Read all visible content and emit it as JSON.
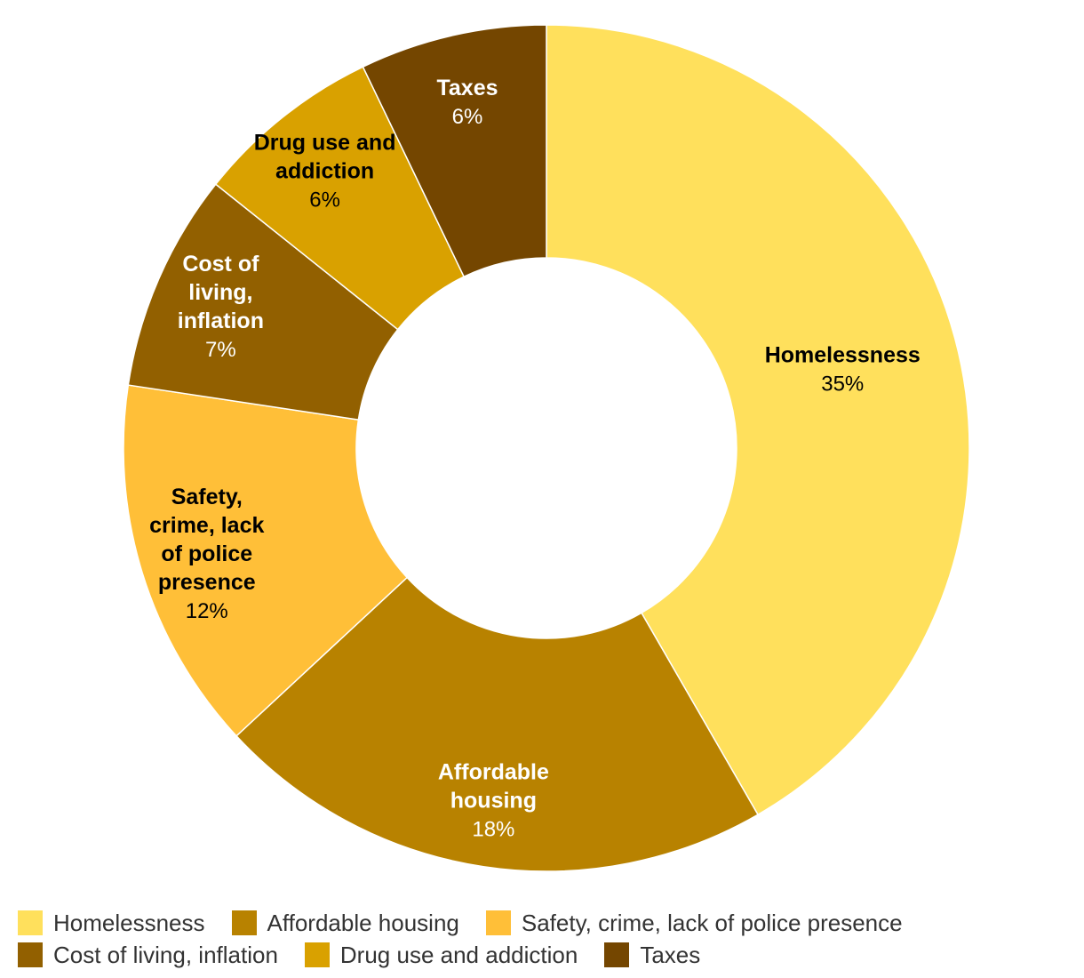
{
  "chart_data": {
    "type": "pie",
    "donut": true,
    "title": "",
    "legend_position": "bottom",
    "slices": [
      {
        "name": "Homelessness",
        "value": 35,
        "value_label": "35%",
        "label_lines": [
          "Homelessness"
        ],
        "color": "#FFE05C",
        "label_color": "#000000"
      },
      {
        "name": "Affordable housing",
        "value": 18,
        "value_label": "18%",
        "label_lines": [
          "Affordable",
          "housing"
        ],
        "color": "#B88200",
        "label_color": "#FFFFFF"
      },
      {
        "name": "Safety, crime, lack of police presence",
        "value": 12,
        "value_label": "12%",
        "label_lines": [
          "Safety,",
          "crime, lack",
          "of police",
          "presence"
        ],
        "color": "#FFBF38",
        "label_color": "#000000"
      },
      {
        "name": "Cost of living, inflation",
        "value": 7,
        "value_label": "7%",
        "label_lines": [
          "Cost of",
          "living,",
          "inflation"
        ],
        "color": "#926000",
        "label_color": "#FFFFFF"
      },
      {
        "name": "Drug use and addiction",
        "value": 6,
        "value_label": "6%",
        "label_lines": [
          "Drug use and",
          "addiction"
        ],
        "color": "#D9A100",
        "label_color": "#000000"
      },
      {
        "name": "Taxes",
        "value": 6,
        "value_label": "6%",
        "label_lines": [
          "Taxes"
        ],
        "color": "#744600",
        "label_color": "#FFFFFF"
      }
    ]
  }
}
